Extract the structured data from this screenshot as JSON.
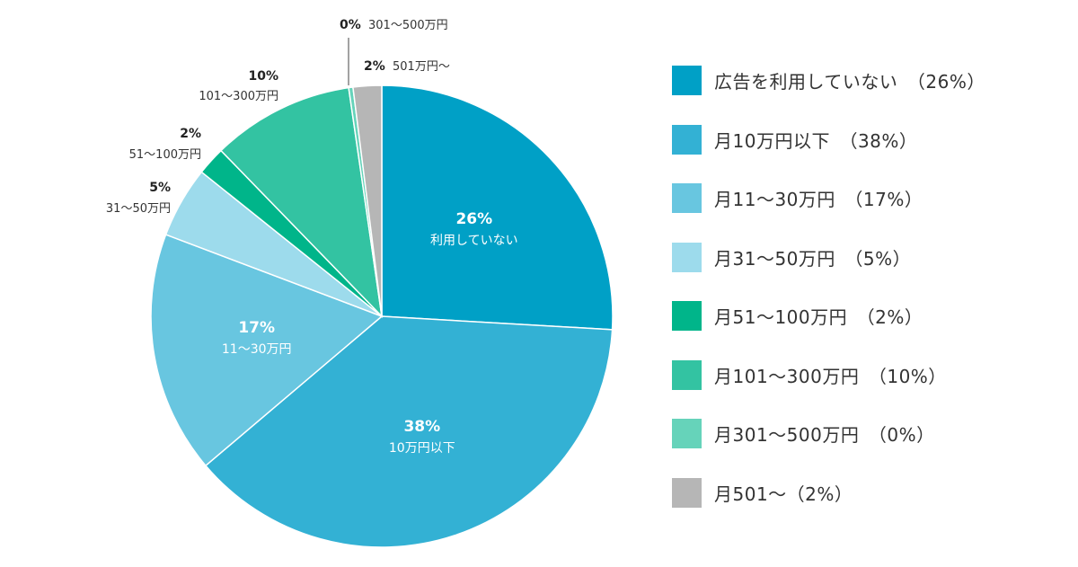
{
  "chart_data": {
    "type": "pie",
    "slices": [
      {
        "legend": "広告を利用していない　（26%）",
        "value": 26,
        "pct_label": "26%",
        "sub_label": "利用していない",
        "label_style": "inside",
        "color": "#00A0C6"
      },
      {
        "legend": "月10万円以下　（38%）",
        "value": 38,
        "pct_label": "38%",
        "sub_label": "10万円以下",
        "label_style": "inside",
        "color": "#33B1D4"
      },
      {
        "legend": "月11〜30万円　（17%）",
        "value": 17,
        "pct_label": "17%",
        "sub_label": "11〜30万円",
        "label_style": "inside",
        "color": "#68C6E0"
      },
      {
        "legend": "月31〜50万円　（5%）",
        "value": 5,
        "pct_label": "5%",
        "sub_label": "31〜50万円",
        "label_style": "outside",
        "color": "#9DDBEC"
      },
      {
        "legend": "月51〜100万円　（2%）",
        "value": 2,
        "pct_label": "2%",
        "sub_label": "51〜100万円",
        "label_style": "outside",
        "color": "#00B58A"
      },
      {
        "legend": "月101〜300万円　（10%）",
        "value": 10,
        "pct_label": "10%",
        "sub_label": "101〜300万円",
        "label_style": "outside",
        "color": "#33C3A2"
      },
      {
        "legend": "月301〜500万円　（0%）",
        "value": 0.3,
        "pct_label": "0%",
        "sub_label": "301〜500万円",
        "label_style": "outside",
        "color": "#66D3BA"
      },
      {
        "legend": "月501〜（2%）",
        "value": 2,
        "pct_label": "2%",
        "sub_label": "501万円〜",
        "label_style": "outside",
        "color": "#B6B6B6"
      }
    ],
    "start": "12 o'clock",
    "direction": "clockwise",
    "legend_position": "right"
  }
}
